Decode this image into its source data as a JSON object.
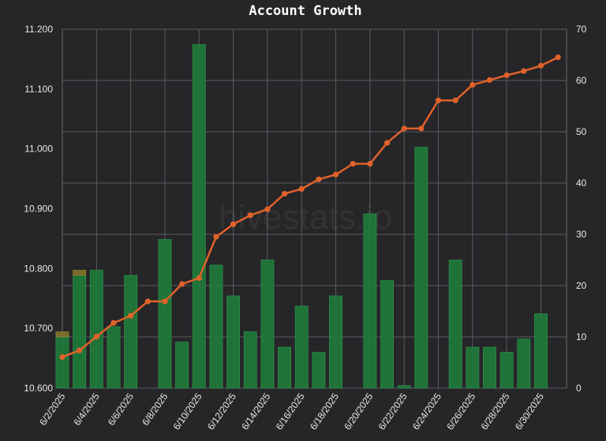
{
  "chart_data": {
    "type": "bar+line",
    "title": "Account Growth",
    "watermark": "hivestats.io",
    "categories": [
      "6/2/2025",
      "6/3/2025",
      "6/4/2025",
      "6/5/2025",
      "6/6/2025",
      "6/7/2025",
      "6/8/2025",
      "6/9/2025",
      "6/10/2025",
      "6/11/2025",
      "6/12/2025",
      "6/13/2025",
      "6/14/2025",
      "6/15/2025",
      "6/16/2025",
      "6/17/2025",
      "6/18/2025",
      "6/19/2025",
      "6/20/2025",
      "6/21/2025",
      "6/22/2025",
      "6/23/2025",
      "6/24/2025",
      "6/25/2025",
      "6/26/2025",
      "6/27/2025",
      "6/28/2025",
      "6/29/2025",
      "6/30/2025",
      "7/1/2025"
    ],
    "x_tick_labels": [
      "6/2/2025",
      "6/4/2025",
      "6/6/2025",
      "6/8/2025",
      "6/10/2025",
      "6/12/2025",
      "6/14/2025",
      "6/16/2025",
      "6/18/2025",
      "6/20/2025",
      "6/22/2025",
      "6/24/2025",
      "6/26/2025",
      "6/28/2025",
      "6/30/2025"
    ],
    "y_left": {
      "ylim": [
        10.6,
        11.2
      ],
      "ticks": [
        "10.600",
        "10.700",
        "10.800",
        "10.900",
        "11.000",
        "11.100",
        "11.200"
      ]
    },
    "y_right": {
      "ylim": [
        0,
        70
      ],
      "ticks": [
        "0",
        "10",
        "20",
        "30",
        "40",
        "50",
        "60",
        "70"
      ]
    },
    "grid": true,
    "series": [
      {
        "kind": "bar",
        "axis": "right",
        "color": "#1f7a3a",
        "values": [
          10,
          22,
          23,
          12,
          22,
          0,
          29,
          9,
          67,
          24,
          18,
          11,
          25,
          8,
          16,
          7,
          18,
          0,
          34,
          21,
          0.5,
          47,
          0,
          25,
          8,
          8,
          7,
          9.6,
          14.5,
          0
        ]
      },
      {
        "kind": "bar",
        "axis": "right",
        "color": "#7a6a28",
        "values": [
          1,
          1,
          0,
          0,
          0,
          0,
          0,
          0,
          0,
          0,
          0,
          0,
          0,
          0,
          0,
          0,
          0,
          0,
          0,
          0,
          0,
          0,
          0,
          0,
          0,
          0,
          0,
          0,
          0,
          0
        ]
      },
      {
        "kind": "line",
        "axis": "left",
        "color": "#e0622a",
        "values": [
          10.652,
          10.663,
          10.686,
          10.709,
          10.721,
          10.745,
          10.745,
          10.774,
          10.784,
          10.853,
          10.874,
          10.889,
          10.899,
          10.925,
          10.933,
          10.949,
          10.957,
          10.975,
          10.975,
          11.01,
          11.034,
          11.034,
          11.081,
          11.081,
          11.107,
          11.115,
          11.123,
          11.13,
          11.139,
          11.153
        ]
      }
    ]
  }
}
